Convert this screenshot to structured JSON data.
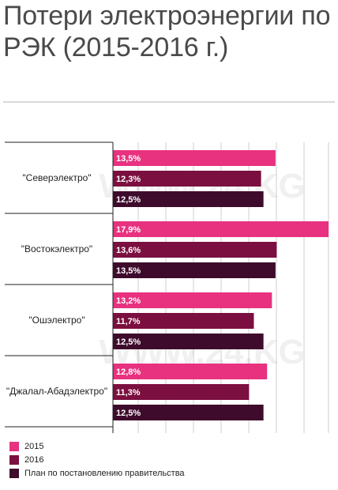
{
  "title": "Потери электроэнергии по РЭК (2015-2016 г.)",
  "watermark": "WWW.24.KG",
  "colors": {
    "2015": "#e8317f",
    "2016": "#7b0f3f",
    "plan": "#3e0b2c",
    "grid": "#cfcfcf",
    "axis": "#222222"
  },
  "chart_data": {
    "type": "bar",
    "orientation": "horizontal",
    "categories": [
      "\"Северэлектро\"",
      "\"Востокэлектро\"",
      "\"Ошэлектро\"",
      "\"Джалал-Абадэлектро\""
    ],
    "series": [
      {
        "name": "2015",
        "values": [
          13.5,
          17.9,
          13.2,
          12.8
        ],
        "labels": [
          "13,5%",
          "17,9%",
          "13,2%",
          "12,8%"
        ]
      },
      {
        "name": "2016",
        "values": [
          12.3,
          13.6,
          11.7,
          11.3
        ],
        "labels": [
          "12,3%",
          "13,6%",
          "11,7%",
          "11,3%"
        ]
      },
      {
        "name": "План по постановлению правительства",
        "values": [
          12.5,
          13.5,
          12.5,
          12.5
        ],
        "labels": [
          "12,5%",
          "13,5%",
          "12,5%",
          "12,5%"
        ]
      }
    ],
    "unit": "%",
    "xlim": [
      0,
      17.9
    ],
    "grid": true,
    "legend_position": "bottom-left"
  }
}
